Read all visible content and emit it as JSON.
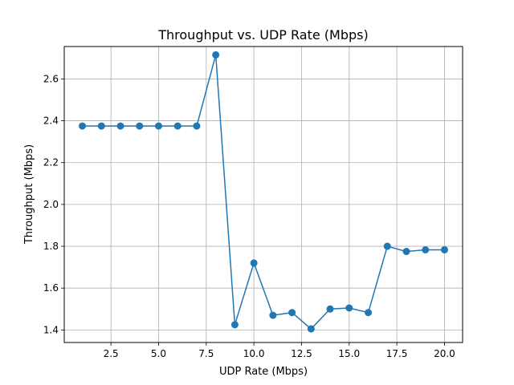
{
  "chart_data": {
    "type": "line",
    "title": "Throughput vs. UDP Rate (Mbps)",
    "xlabel": "UDP Rate (Mbps)",
    "ylabel": "Throughput (Mbps)",
    "xlim": [
      0.05,
      20.95
    ],
    "ylim": [
      1.34,
      2.755
    ],
    "xticks": [
      2.5,
      5.0,
      7.5,
      10.0,
      12.5,
      15.0,
      17.5,
      20.0
    ],
    "xtick_labels": [
      "2.5",
      "5.0",
      "7.5",
      "10.0",
      "12.5",
      "15.0",
      "17.5",
      "20.0"
    ],
    "yticks": [
      1.4,
      1.6,
      1.8,
      2.0,
      2.2,
      2.4,
      2.6
    ],
    "ytick_labels": [
      "1.4",
      "1.6",
      "1.8",
      "2.0",
      "2.2",
      "2.4",
      "2.6"
    ],
    "grid": true,
    "series": [
      {
        "x": [
          1,
          2,
          3,
          4,
          5,
          6,
          7,
          8,
          9,
          10,
          11,
          12,
          13,
          14,
          15,
          16,
          17,
          18,
          19,
          20
        ],
        "y": [
          2.375,
          2.375,
          2.375,
          2.375,
          2.375,
          2.375,
          2.375,
          2.715,
          1.425,
          1.72,
          1.47,
          1.483,
          1.405,
          1.5,
          1.505,
          1.483,
          1.8,
          1.775,
          1.783,
          1.783
        ],
        "color": "#1f77b4",
        "marker": "circle"
      }
    ]
  }
}
